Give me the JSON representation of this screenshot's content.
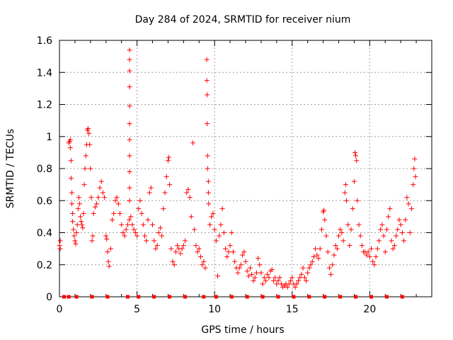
{
  "chart_data": {
    "type": "scatter",
    "title": "Day 284 of 2024, SRMTID for receiver nium",
    "xlabel": "GPS time / hours",
    "ylabel": "SRMTID / TECUs",
    "xlim": [
      0,
      24
    ],
    "ylim": [
      0,
      1.6
    ],
    "xticks": [
      0,
      5,
      10,
      15,
      20
    ],
    "yticks": [
      0,
      0.2,
      0.4,
      0.6,
      0.8,
      1,
      1.2,
      1.4,
      1.6
    ],
    "xtick_labels": [
      "0",
      "5",
      "10",
      "15",
      "20"
    ],
    "ytick_labels": [
      "0",
      "0.2",
      "0.4",
      "0.6",
      "0.8",
      "1",
      "1.2",
      "1.4",
      "1.6"
    ],
    "grid": true,
    "marker": "+",
    "color": "#ff0000",
    "series": [
      {
        "name": "SRMTID",
        "points": [
          [
            0.0,
            0.32
          ],
          [
            0.05,
            0.3
          ],
          [
            0.05,
            0.35
          ],
          [
            0.6,
            0.96
          ],
          [
            0.65,
            0.97
          ],
          [
            0.7,
            0.98
          ],
          [
            0.7,
            0.93
          ],
          [
            0.75,
            0.85
          ],
          [
            0.75,
            0.74
          ],
          [
            0.8,
            0.65
          ],
          [
            0.8,
            0.58
          ],
          [
            0.85,
            0.52
          ],
          [
            0.85,
            0.47
          ],
          [
            0.9,
            0.42
          ],
          [
            0.95,
            0.38
          ],
          [
            1.0,
            0.35
          ],
          [
            1.05,
            0.33
          ],
          [
            1.1,
            0.4
          ],
          [
            1.15,
            0.45
          ],
          [
            1.2,
            0.55
          ],
          [
            1.25,
            0.62
          ],
          [
            1.3,
            0.58
          ],
          [
            1.35,
            0.5
          ],
          [
            1.4,
            0.47
          ],
          [
            1.45,
            0.45
          ],
          [
            1.5,
            0.43
          ],
          [
            1.55,
            0.52
          ],
          [
            1.6,
            0.7
          ],
          [
            1.65,
            0.8
          ],
          [
            1.7,
            0.88
          ],
          [
            1.75,
            0.95
          ],
          [
            1.8,
            1.04
          ],
          [
            1.85,
            1.05
          ],
          [
            1.9,
            1.02
          ],
          [
            1.95,
            0.95
          ],
          [
            2.0,
            0.8
          ],
          [
            2.05,
            0.62
          ],
          [
            2.1,
            0.35
          ],
          [
            2.15,
            0.38
          ],
          [
            2.2,
            0.52
          ],
          [
            2.3,
            0.56
          ],
          [
            2.4,
            0.58
          ],
          [
            2.5,
            0.62
          ],
          [
            2.6,
            0.68
          ],
          [
            2.7,
            0.72
          ],
          [
            2.8,
            0.65
          ],
          [
            2.9,
            0.62
          ],
          [
            3.0,
            0.38
          ],
          [
            3.05,
            0.36
          ],
          [
            3.1,
            0.28
          ],
          [
            3.15,
            0.22
          ],
          [
            3.2,
            0.19
          ],
          [
            3.3,
            0.3
          ],
          [
            3.4,
            0.48
          ],
          [
            3.5,
            0.52
          ],
          [
            3.6,
            0.6
          ],
          [
            3.7,
            0.62
          ],
          [
            3.8,
            0.58
          ],
          [
            3.9,
            0.52
          ],
          [
            4.0,
            0.45
          ],
          [
            4.1,
            0.4
          ],
          [
            4.2,
            0.38
          ],
          [
            4.3,
            0.42
          ],
          [
            4.4,
            0.45
          ],
          [
            4.5,
            0.48
          ],
          [
            4.52,
            1.54
          ],
          [
            4.52,
            1.48
          ],
          [
            4.52,
            1.41
          ],
          [
            4.52,
            1.31
          ],
          [
            4.52,
            1.19
          ],
          [
            4.52,
            1.08
          ],
          [
            4.52,
            0.98
          ],
          [
            4.52,
            0.88
          ],
          [
            4.52,
            0.78
          ],
          [
            4.52,
            0.68
          ],
          [
            4.52,
            0.6
          ],
          [
            4.6,
            0.5
          ],
          [
            4.7,
            0.45
          ],
          [
            4.8,
            0.42
          ],
          [
            4.9,
            0.4
          ],
          [
            5.0,
            0.38
          ],
          [
            5.1,
            0.55
          ],
          [
            5.2,
            0.6
          ],
          [
            5.3,
            0.52
          ],
          [
            5.4,
            0.45
          ],
          [
            5.5,
            0.38
          ],
          [
            5.6,
            0.35
          ],
          [
            5.7,
            0.48
          ],
          [
            5.8,
            0.65
          ],
          [
            5.9,
            0.68
          ],
          [
            6.0,
            0.45
          ],
          [
            6.1,
            0.35
          ],
          [
            6.2,
            0.3
          ],
          [
            6.3,
            0.32
          ],
          [
            6.4,
            0.4
          ],
          [
            6.5,
            0.43
          ],
          [
            6.6,
            0.38
          ],
          [
            6.7,
            0.55
          ],
          [
            6.8,
            0.65
          ],
          [
            6.9,
            0.75
          ],
          [
            7.0,
            0.85
          ],
          [
            7.05,
            0.87
          ],
          [
            7.1,
            0.7
          ],
          [
            7.2,
            0.3
          ],
          [
            7.3,
            0.22
          ],
          [
            7.4,
            0.2
          ],
          [
            7.5,
            0.28
          ],
          [
            7.6,
            0.32
          ],
          [
            7.7,
            0.3
          ],
          [
            7.8,
            0.27
          ],
          [
            7.9,
            0.3
          ],
          [
            8.0,
            0.32
          ],
          [
            8.1,
            0.35
          ],
          [
            8.2,
            0.65
          ],
          [
            8.3,
            0.67
          ],
          [
            8.4,
            0.62
          ],
          [
            8.5,
            0.5
          ],
          [
            8.6,
            0.96
          ],
          [
            8.7,
            0.42
          ],
          [
            8.8,
            0.32
          ],
          [
            8.9,
            0.28
          ],
          [
            9.0,
            0.3
          ],
          [
            9.1,
            0.25
          ],
          [
            9.2,
            0.2
          ],
          [
            9.3,
            0.22
          ],
          [
            9.4,
            0.18
          ],
          [
            9.5,
            1.48
          ],
          [
            9.5,
            1.35
          ],
          [
            9.52,
            1.26
          ],
          [
            9.52,
            1.08
          ],
          [
            9.55,
            0.88
          ],
          [
            9.55,
            0.8
          ],
          [
            9.6,
            0.72
          ],
          [
            9.6,
            0.65
          ],
          [
            9.62,
            0.58
          ],
          [
            9.7,
            0.45
          ],
          [
            9.8,
            0.5
          ],
          [
            9.9,
            0.52
          ],
          [
            10.0,
            0.42
          ],
          [
            10.1,
            0.35
          ],
          [
            10.2,
            0.13
          ],
          [
            10.3,
            0.38
          ],
          [
            10.4,
            0.45
          ],
          [
            10.5,
            0.55
          ],
          [
            10.6,
            0.4
          ],
          [
            10.7,
            0.3
          ],
          [
            10.8,
            0.25
          ],
          [
            10.9,
            0.28
          ],
          [
            11.0,
            0.32
          ],
          [
            11.1,
            0.4
          ],
          [
            11.2,
            0.28
          ],
          [
            11.3,
            0.22
          ],
          [
            11.4,
            0.18
          ],
          [
            11.5,
            0.15
          ],
          [
            11.6,
            0.18
          ],
          [
            11.7,
            0.2
          ],
          [
            11.8,
            0.26
          ],
          [
            11.9,
            0.28
          ],
          [
            12.0,
            0.22
          ],
          [
            12.1,
            0.16
          ],
          [
            12.2,
            0.13
          ],
          [
            12.3,
            0.18
          ],
          [
            12.4,
            0.14
          ],
          [
            12.5,
            0.1
          ],
          [
            12.6,
            0.12
          ],
          [
            12.7,
            0.15
          ],
          [
            12.8,
            0.24
          ],
          [
            12.9,
            0.2
          ],
          [
            13.0,
            0.15
          ],
          [
            13.1,
            0.08
          ],
          [
            13.2,
            0.12
          ],
          [
            13.3,
            0.1
          ],
          [
            13.4,
            0.14
          ],
          [
            13.5,
            0.12
          ],
          [
            13.6,
            0.16
          ],
          [
            13.7,
            0.17
          ],
          [
            13.8,
            0.1
          ],
          [
            13.9,
            0.12
          ],
          [
            14.0,
            0.08
          ],
          [
            14.1,
            0.1
          ],
          [
            14.2,
            0.12
          ],
          [
            14.3,
            0.08
          ],
          [
            14.4,
            0.06
          ],
          [
            14.5,
            0.07
          ],
          [
            14.6,
            0.08
          ],
          [
            14.7,
            0.06
          ],
          [
            14.8,
            0.08
          ],
          [
            14.9,
            0.1
          ],
          [
            15.0,
            0.12
          ],
          [
            15.1,
            0.08
          ],
          [
            15.2,
            0.06
          ],
          [
            15.3,
            0.08
          ],
          [
            15.4,
            0.1
          ],
          [
            15.5,
            0.12
          ],
          [
            15.6,
            0.14
          ],
          [
            15.7,
            0.18
          ],
          [
            15.8,
            0.12
          ],
          [
            15.9,
            0.1
          ],
          [
            16.0,
            0.15
          ],
          [
            16.1,
            0.18
          ],
          [
            16.2,
            0.2
          ],
          [
            16.3,
            0.22
          ],
          [
            16.4,
            0.25
          ],
          [
            16.5,
            0.3
          ],
          [
            16.6,
            0.26
          ],
          [
            16.7,
            0.24
          ],
          [
            16.8,
            0.3
          ],
          [
            16.9,
            0.42
          ],
          [
            17.0,
            0.53
          ],
          [
            17.05,
            0.54
          ],
          [
            17.1,
            0.48
          ],
          [
            17.2,
            0.38
          ],
          [
            17.3,
            0.28
          ],
          [
            17.4,
            0.18
          ],
          [
            17.5,
            0.14
          ],
          [
            17.6,
            0.2
          ],
          [
            17.7,
            0.26
          ],
          [
            17.8,
            0.32
          ],
          [
            17.9,
            0.3
          ],
          [
            18.0,
            0.38
          ],
          [
            18.1,
            0.42
          ],
          [
            18.2,
            0.4
          ],
          [
            18.3,
            0.35
          ],
          [
            18.4,
            0.65
          ],
          [
            18.45,
            0.7
          ],
          [
            18.5,
            0.6
          ],
          [
            18.6,
            0.45
          ],
          [
            18.7,
            0.32
          ],
          [
            18.8,
            0.42
          ],
          [
            18.9,
            0.55
          ],
          [
            19.0,
            0.72
          ],
          [
            19.05,
            0.9
          ],
          [
            19.1,
            0.88
          ],
          [
            19.15,
            0.85
          ],
          [
            19.2,
            0.6
          ],
          [
            19.3,
            0.45
          ],
          [
            19.4,
            0.38
          ],
          [
            19.5,
            0.32
          ],
          [
            19.6,
            0.28
          ],
          [
            19.7,
            0.28
          ],
          [
            19.8,
            0.26
          ],
          [
            19.9,
            0.28
          ],
          [
            20.0,
            0.25
          ],
          [
            20.1,
            0.3
          ],
          [
            20.2,
            0.22
          ],
          [
            20.3,
            0.2
          ],
          [
            20.4,
            0.25
          ],
          [
            20.5,
            0.3
          ],
          [
            20.6,
            0.35
          ],
          [
            20.7,
            0.42
          ],
          [
            20.8,
            0.45
          ],
          [
            20.9,
            0.38
          ],
          [
            21.0,
            0.28
          ],
          [
            21.1,
            0.42
          ],
          [
            21.2,
            0.5
          ],
          [
            21.3,
            0.55
          ],
          [
            21.4,
            0.35
          ],
          [
            21.5,
            0.3
          ],
          [
            21.6,
            0.32
          ],
          [
            21.7,
            0.38
          ],
          [
            21.8,
            0.42
          ],
          [
            21.9,
            0.48
          ],
          [
            22.0,
            0.45
          ],
          [
            22.1,
            0.4
          ],
          [
            22.2,
            0.35
          ],
          [
            22.3,
            0.48
          ],
          [
            22.4,
            0.62
          ],
          [
            22.5,
            0.58
          ],
          [
            22.6,
            0.4
          ],
          [
            22.7,
            0.55
          ],
          [
            22.8,
            0.7
          ],
          [
            22.85,
            0.8
          ],
          [
            22.9,
            0.86
          ],
          [
            22.95,
            0.75
          ]
        ]
      }
    ],
    "baseline_markers_x": [
      0.3,
      0.6,
      1.1,
      2.1,
      3.1,
      4.4,
      5.1,
      6.1,
      7.1,
      8.1,
      9.3,
      10.1,
      11.1,
      12.1,
      13.1,
      14.1,
      15.1,
      16.1,
      17.1,
      18.1,
      19.1,
      20.1,
      21.1,
      22.1
    ]
  }
}
